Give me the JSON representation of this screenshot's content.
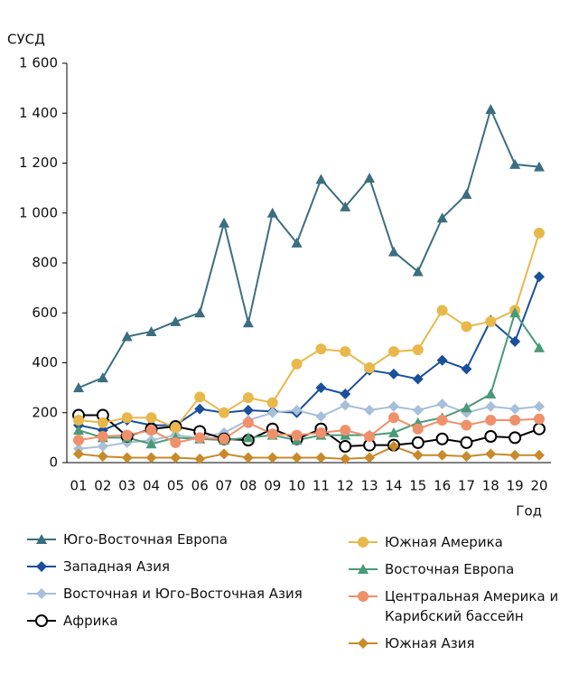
{
  "chart_data": {
    "type": "line",
    "y_label": "СУСД",
    "x_label": "Год",
    "categories": [
      "01",
      "02",
      "03",
      "04",
      "05",
      "06",
      "07",
      "08",
      "09",
      "10",
      "11",
      "12",
      "13",
      "14",
      "15",
      "16",
      "17",
      "18",
      "19",
      "20"
    ],
    "ylim": [
      0,
      1600
    ],
    "yticks": [
      0,
      200,
      400,
      600,
      800,
      {
        "value": 1000,
        "label": "1 000"
      },
      {
        "value": 1200,
        "label": "1 200"
      },
      {
        "value": 1400,
        "label": "1 400"
      },
      {
        "value": 1600,
        "label": "1 600"
      }
    ],
    "series": [
      {
        "name": "Юго-Восточная Европа",
        "color": "#3b6e80",
        "marker": "triangle",
        "values": [
          300,
          340,
          505,
          525,
          565,
          600,
          960,
          560,
          1000,
          880,
          1135,
          1025,
          1140,
          845,
          765,
          980,
          1075,
          1415,
          1195,
          1185
        ]
      },
      {
        "name": "Западная  Азия",
        "color": "#1a4f9c",
        "marker": "diamond",
        "values": [
          150,
          130,
          170,
          150,
          150,
          215,
          200,
          210,
          205,
          200,
          300,
          275,
          370,
          355,
          335,
          410,
          375,
          570,
          485,
          745
        ]
      },
      {
        "name": "Восточная и Юго-Восточная Азия",
        "color": "#a8bfd8",
        "marker": "diamond",
        "values": [
          55,
          65,
          80,
          90,
          110,
          100,
          120,
          170,
          200,
          210,
          185,
          230,
          210,
          225,
          210,
          235,
          200,
          225,
          215,
          225
        ]
      },
      {
        "name": "Африка",
        "color": "#000000",
        "marker": "open-circle",
        "values": [
          190,
          190,
          105,
          135,
          145,
          125,
          95,
          90,
          135,
          95,
          135,
          65,
          70,
          70,
          80,
          95,
          80,
          105,
          100,
          135
        ]
      },
      {
        "name": "Южная Америка",
        "color": "#e8b84b",
        "marker": "circle",
        "values": [
          170,
          160,
          180,
          180,
          140,
          263,
          200,
          260,
          240,
          395,
          455,
          445,
          380,
          445,
          452,
          610,
          545,
          565,
          610,
          920
        ]
      },
      {
        "name": "Восточная Европа",
        "color": "#4a9a78",
        "marker": "triangle",
        "values": [
          130,
          100,
          100,
          75,
          100,
          95,
          90,
          100,
          110,
          90,
          110,
          110,
          110,
          120,
          160,
          180,
          220,
          275,
          600,
          460
        ]
      },
      {
        "name": "Центральная Америка и Карибский бассейн",
        "color": "#f0906a",
        "marker": "circle",
        "values": [
          90,
          105,
          110,
          130,
          80,
          100,
          95,
          160,
          115,
          110,
          120,
          130,
          105,
          180,
          135,
          170,
          150,
          170,
          170,
          175
        ]
      },
      {
        "name": "Южная Азия",
        "color": "#c88a2a",
        "marker": "diamond",
        "values": [
          35,
          25,
          20,
          20,
          20,
          15,
          35,
          20,
          20,
          20,
          20,
          15,
          20,
          65,
          30,
          30,
          25,
          35,
          30,
          30
        ]
      }
    ]
  }
}
